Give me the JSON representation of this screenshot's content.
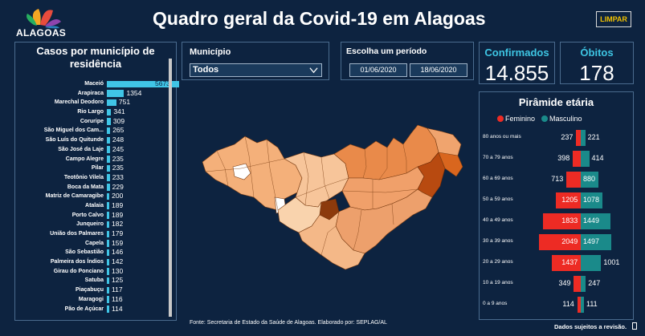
{
  "header": {
    "logo_text": "ALAGOAS",
    "title": "Quadro geral da Covid-19 em Alagoas",
    "clear_button": "LIMPAR"
  },
  "municipio_panel": {
    "title": "Casos por município de residência",
    "bars": [
      {
        "name": "Maceió",
        "value": 5673
      },
      {
        "name": "Arapiraca",
        "value": 1354
      },
      {
        "name": "Marechal Deodoro",
        "value": 751
      },
      {
        "name": "Rio Largo",
        "value": 341
      },
      {
        "name": "Coruripe",
        "value": 309
      },
      {
        "name": "São Miguel dos Cam...",
        "value": 265
      },
      {
        "name": "São Luís do Quitunde",
        "value": 248
      },
      {
        "name": "São José da Laje",
        "value": 245
      },
      {
        "name": "Campo Alegre",
        "value": 235
      },
      {
        "name": "Pilar",
        "value": 235
      },
      {
        "name": "Teotônio Vilela",
        "value": 233
      },
      {
        "name": "Boca da Mata",
        "value": 229
      },
      {
        "name": "Matriz de Camaragibe",
        "value": 200
      },
      {
        "name": "Atalaia",
        "value": 189
      },
      {
        "name": "Porto Calvo",
        "value": 189
      },
      {
        "name": "Junqueiro",
        "value": 182
      },
      {
        "name": "União dos Palmares",
        "value": 179
      },
      {
        "name": "Capela",
        "value": 159
      },
      {
        "name": "São Sebastião",
        "value": 146
      },
      {
        "name": "Palmeira dos Índios",
        "value": 142
      },
      {
        "name": "Girau do Ponciano",
        "value": 130
      },
      {
        "name": "Satuba",
        "value": 125
      },
      {
        "name": "Piaçabuçu",
        "value": 117
      },
      {
        "name": "Maragogi",
        "value": 116
      },
      {
        "name": "Pão de Açúcar",
        "value": 114
      }
    ]
  },
  "filter": {
    "label": "Município",
    "selected": "Todos"
  },
  "period": {
    "label": "Escolha um período",
    "start": "01/06/2020",
    "end": "18/06/2020"
  },
  "kpis": {
    "confirmados_label": "Confirmados",
    "confirmados_value": "14.855",
    "obitos_label": "Óbitos",
    "obitos_value": "178"
  },
  "pyramid": {
    "title": "Pirâmide etária",
    "legend_f": "Feminino",
    "legend_m": "Masculino",
    "color_f": "#ed2b24",
    "color_m": "#1a8a8a",
    "rows": [
      {
        "label": "80 anos ou mais",
        "f": 237,
        "m": 221
      },
      {
        "label": "70 a 79 anos",
        "f": 398,
        "m": 414
      },
      {
        "label": "60 a 69 anos",
        "f": 713,
        "m": 880
      },
      {
        "label": "50 a 59 anos",
        "f": 1205,
        "m": 1078
      },
      {
        "label": "40 a 49 anos",
        "f": 1833,
        "m": 1449
      },
      {
        "label": "30 a 39 anos",
        "f": 2049,
        "m": 1497
      },
      {
        "label": "20 a 29 anos",
        "f": 1437,
        "m": 1001
      },
      {
        "label": "10 a 19 anos",
        "f": 349,
        "m": 247
      },
      {
        "label": "0 a 9 anos",
        "f": 114,
        "m": 111
      }
    ]
  },
  "footer": {
    "source": "Fonte: Secretaria de Estado da Saúde de Alagoas. Elaborado por: SEPLAG/AL",
    "note": "Dados sujeitos a revisão."
  },
  "colors": {
    "background": "#0d2340",
    "accent": "#3ec5e3",
    "bar": "#40c5e6"
  }
}
